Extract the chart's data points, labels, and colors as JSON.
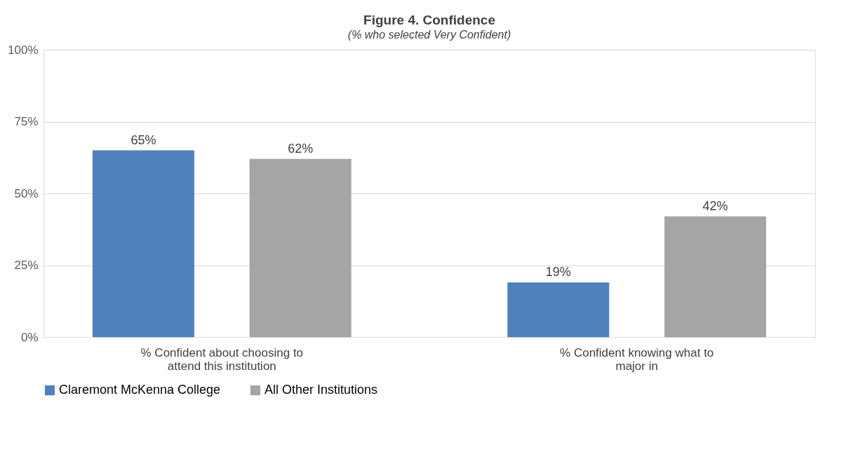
{
  "chart_data": {
    "type": "bar",
    "title": "Figure 4. Confidence",
    "subtitle": "(% who selected Very Confident)",
    "categories": [
      "% Confident about choosing to attend this institution",
      "% Confident knowing what to major in"
    ],
    "series": [
      {
        "name": "Claremont McKenna College",
        "color": "#4f81bd",
        "values": [
          65,
          19
        ],
        "value_labels": [
          "65%",
          "19%"
        ]
      },
      {
        "name": "All Other Institutions",
        "color": "#a5a5a5",
        "values": [
          62,
          42
        ],
        "value_labels": [
          "62%",
          "42%"
        ]
      }
    ],
    "ylim": [
      0,
      100
    ],
    "yticks": [
      {
        "value": 0,
        "label": "0%"
      },
      {
        "value": 25,
        "label": "25%"
      },
      {
        "value": 50,
        "label": "50%"
      },
      {
        "value": 75,
        "label": "75%"
      },
      {
        "value": 100,
        "label": "100%"
      }
    ],
    "grid": "y",
    "legend": "bottom"
  }
}
